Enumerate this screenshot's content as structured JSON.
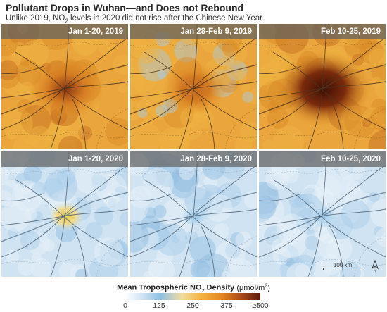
{
  "header": {
    "title": "Pollutant Drops in Wuhan—and Does not Rebound",
    "subtitle_before": "Unlike 2019, NO",
    "subtitle_sub": "2",
    "subtitle_after": " levels in 2020 did not rise after the Chinese New Year."
  },
  "panels": [
    {
      "label": "Jan 1-20, 2019",
      "year": 2019,
      "intensity": 0.6
    },
    {
      "label": "Jan 28-Feb 9, 2019",
      "year": 2019,
      "intensity": 0.3
    },
    {
      "label": "Feb 10-25, 2019",
      "year": 2019,
      "intensity": 0.95
    },
    {
      "label": "Jan 1-20, 2020",
      "year": 2020,
      "intensity": 0.45
    },
    {
      "label": "Jan 28-Feb 9, 2020",
      "year": 2020,
      "intensity": 0.12
    },
    {
      "label": "Feb 10-25, 2020",
      "year": 2020,
      "intensity": 0.12
    }
  ],
  "scale_bar": {
    "label": "100 km"
  },
  "north_arrow": {
    "label": "N"
  },
  "legend": {
    "title_before": "Mean Tropospheric NO",
    "title_sub": "2",
    "title_after": " Density",
    "unit_before": "(μmol/m",
    "unit_sup": "2",
    "unit_after": ")",
    "ticks": [
      "0",
      "125",
      "250",
      "375",
      "≥500"
    ],
    "colors": [
      "#ffffff",
      "#8fc0e4",
      "#f4b443",
      "#e0841f",
      "#5a1a08"
    ]
  }
}
